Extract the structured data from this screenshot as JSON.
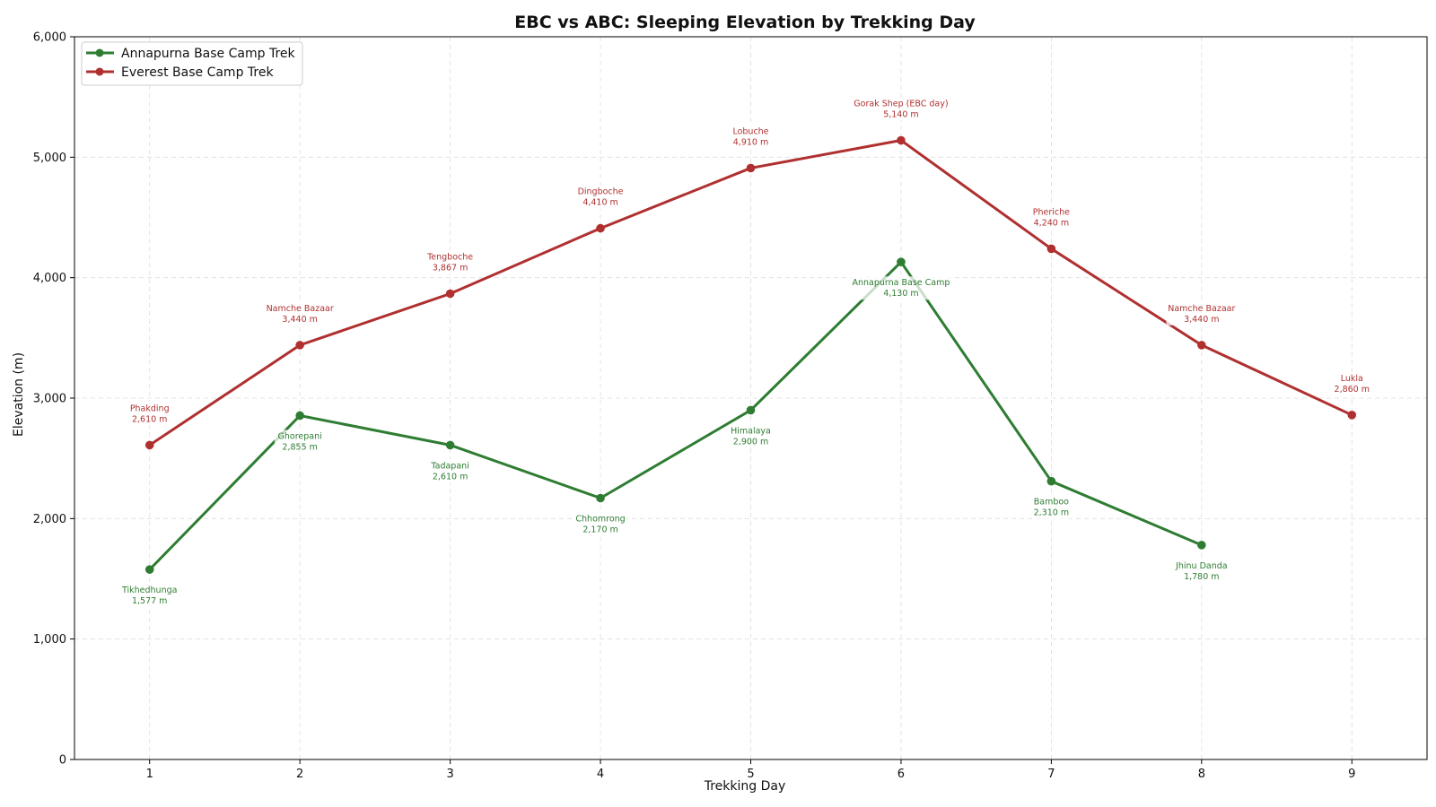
{
  "chart_data": {
    "type": "line",
    "title": "EBC vs ABC: Sleeping Elevation by Trekking Day",
    "xlabel": "Trekking Day",
    "ylabel": "Elevation (m)",
    "xlim": [
      0.5,
      9.5
    ],
    "ylim": [
      0,
      6000
    ],
    "x_ticks": [
      1,
      2,
      3,
      4,
      5,
      6,
      7,
      8,
      9
    ],
    "y_ticks": [
      0,
      1000,
      2000,
      3000,
      4000,
      5000,
      6000
    ],
    "x_tick_labels": [
      "1",
      "2",
      "3",
      "4",
      "5",
      "6",
      "7",
      "8",
      "9"
    ],
    "y_tick_labels": [
      "0",
      "1,000",
      "2,000",
      "3,000",
      "4,000",
      "5,000",
      "6,000"
    ],
    "grid": true,
    "legend_position": "top-left",
    "series": [
      {
        "name": "Annapurna Base Camp Trek",
        "color": "#2e7d32",
        "label_placement": "below",
        "points": [
          {
            "x": 1,
            "y": 1577,
            "place": "Tikhedhunga",
            "label": "1,577 m"
          },
          {
            "x": 2,
            "y": 2855,
            "place": "Ghorepani",
            "label": "2,855 m"
          },
          {
            "x": 3,
            "y": 2610,
            "place": "Tadapani",
            "label": "2,610 m"
          },
          {
            "x": 4,
            "y": 2170,
            "place": "Chhomrong",
            "label": "2,170 m"
          },
          {
            "x": 5,
            "y": 2900,
            "place": "Himalaya",
            "label": "2,900 m"
          },
          {
            "x": 6,
            "y": 4130,
            "place": "Annapurna Base Camp",
            "label": "4,130 m"
          },
          {
            "x": 7,
            "y": 2310,
            "place": "Bamboo",
            "label": "2,310 m"
          },
          {
            "x": 8,
            "y": 1780,
            "place": "Jhinu Danda",
            "label": "1,780 m"
          }
        ]
      },
      {
        "name": "Everest Base Camp Trek",
        "color": "#b03030",
        "label_placement": "above",
        "points": [
          {
            "x": 1,
            "y": 2610,
            "place": "Phakding",
            "label": "2,610 m"
          },
          {
            "x": 2,
            "y": 3440,
            "place": "Namche Bazaar",
            "label": "3,440 m"
          },
          {
            "x": 3,
            "y": 3867,
            "place": "Tengboche",
            "label": "3,867 m"
          },
          {
            "x": 4,
            "y": 4410,
            "place": "Dingboche",
            "label": "4,410 m"
          },
          {
            "x": 5,
            "y": 4910,
            "place": "Lobuche",
            "label": "4,910 m"
          },
          {
            "x": 6,
            "y": 5140,
            "place": "Gorak Shep (EBC day)",
            "label": "5,140 m"
          },
          {
            "x": 7,
            "y": 4240,
            "place": "Pheriche",
            "label": "4,240 m"
          },
          {
            "x": 8,
            "y": 3440,
            "place": "Namche Bazaar",
            "label": "3,440 m"
          },
          {
            "x": 9,
            "y": 2860,
            "place": "Lukla",
            "label": "2,860 m"
          }
        ]
      }
    ]
  }
}
